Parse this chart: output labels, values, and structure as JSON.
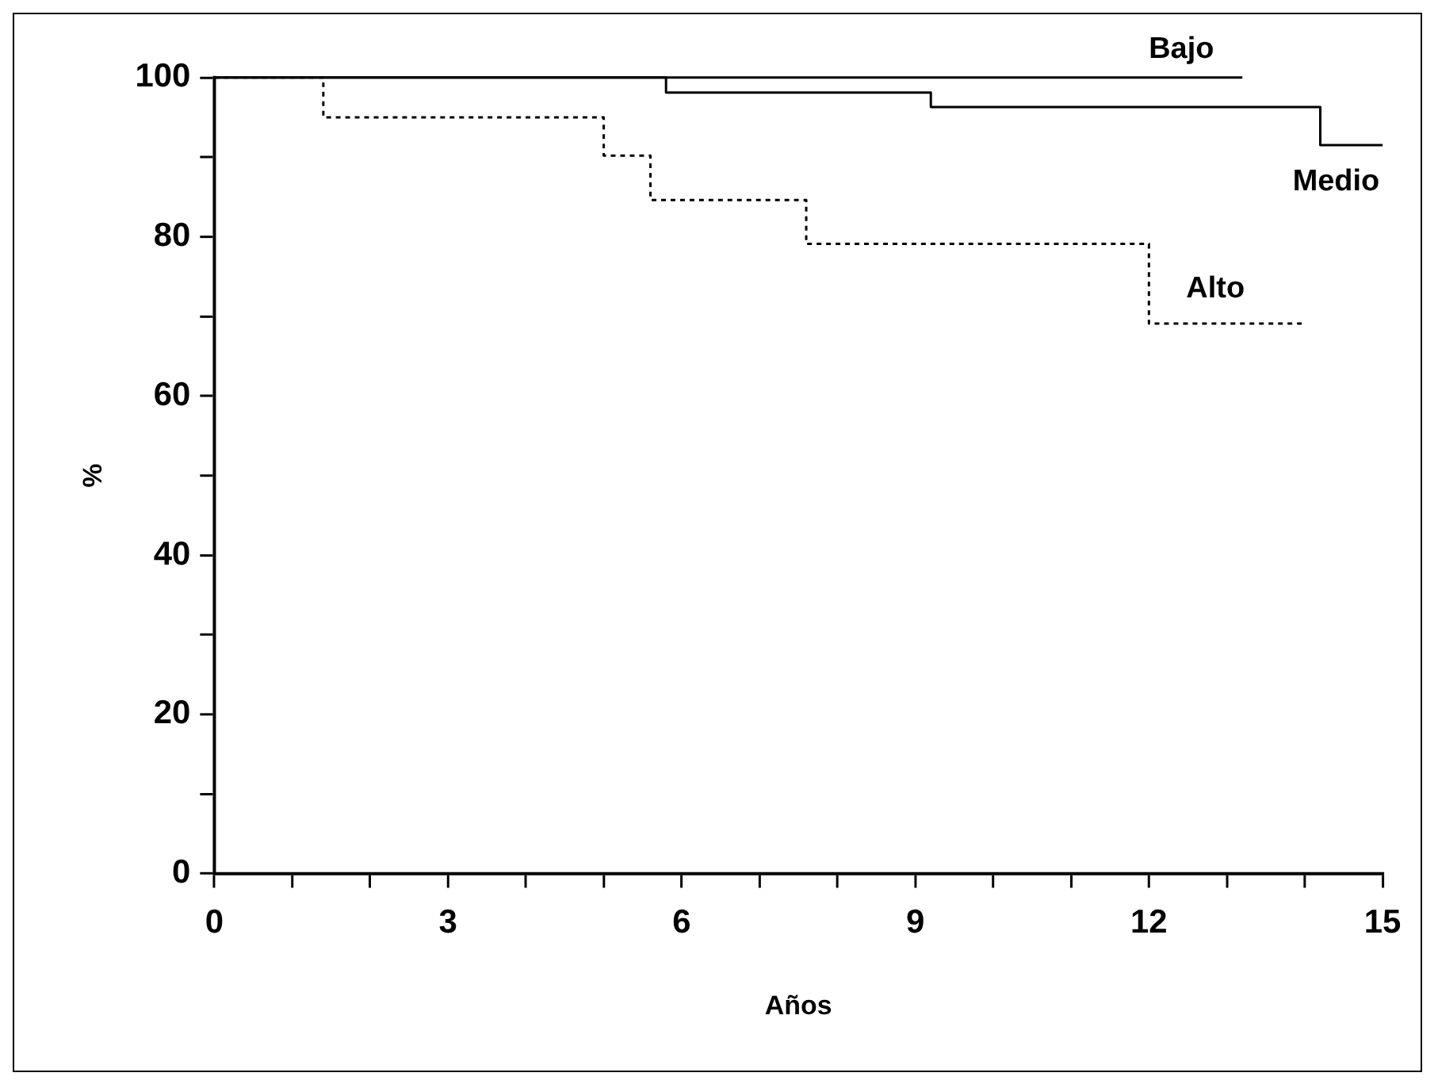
{
  "chart_data": {
    "type": "step",
    "xlabel": "Años",
    "ylabel": "%",
    "series": [
      {
        "name": "Bajo",
        "color": "#000000",
        "x": [
          0,
          13.2
        ],
        "values": [
          100,
          100
        ],
        "line_style": "solid"
      },
      {
        "name": "Medio",
        "color": "#000000",
        "x": [
          0,
          5.8,
          9.2,
          14.2,
          15
        ],
        "values": [
          100,
          98.1,
          96.3,
          91.5,
          91.5
        ],
        "line_style": "solid"
      },
      {
        "name": "Alto",
        "color": "#000000",
        "x": [
          0,
          1.4,
          5.0,
          5.6,
          7.6,
          12.0,
          14.0
        ],
        "values": [
          100,
          95.0,
          90.2,
          84.6,
          79.1,
          69.1,
          69.1
        ],
        "line_style": "dashed"
      }
    ],
    "xlim": [
      0,
      15
    ],
    "xticks": [
      0,
      {
        "value": 1,
        "label": null
      },
      {
        "value": 2,
        "label": null
      },
      3,
      {
        "value": 4,
        "label": null
      },
      {
        "value": 5,
        "label": null
      },
      6,
      {
        "value": 7,
        "label": null
      },
      {
        "value": 8,
        "label": null
      },
      9,
      {
        "value": 10,
        "label": null
      },
      {
        "value": 11,
        "label": null
      },
      12,
      {
        "value": 13,
        "label": null
      },
      {
        "value": 14,
        "label": null
      },
      15
    ],
    "ylim": [
      0,
      100
    ],
    "yticks": [
      0,
      {
        "value": 10,
        "label": null
      },
      20,
      {
        "value": 30,
        "label": null
      },
      40,
      {
        "value": 50,
        "label": null
      },
      60,
      {
        "value": 70,
        "label": null
      },
      80,
      {
        "value": 90,
        "label": null
      },
      100
    ],
    "grid": false,
    "legend": false
  }
}
